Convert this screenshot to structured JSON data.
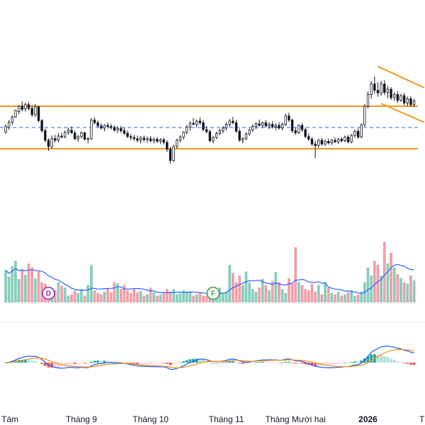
{
  "chart_data": {
    "type": "candlestick",
    "title": "",
    "xlabel": "",
    "ylabel": "",
    "x_ticks": [
      {
        "label": "Tám",
        "index": 0
      },
      {
        "label": "Tháng 9",
        "index": 23
      },
      {
        "label": "Tháng 10",
        "index": 44
      },
      {
        "label": "Tháng 11",
        "index": 67
      },
      {
        "label": "Tháng Mười hai",
        "index": 88
      },
      {
        "label": "2026",
        "index": 110
      },
      {
        "label": "T",
        "index": 126
      }
    ],
    "price_pane": {
      "ylim": [
        80,
        120
      ],
      "range_levels": {
        "upper": 104,
        "lower": 96,
        "mid": 100,
        "color": "#f7931a",
        "mid_color": "#2962ff"
      },
      "trend_channel": {
        "upper_start": [
          113,
          111.5
        ],
        "upper_end": [
          127,
          107.5
        ],
        "lower_start": [
          114,
          104.5
        ],
        "lower_end": [
          127,
          101
        ],
        "color": "#f7931a"
      },
      "candles": [
        {
          "o": 99.2,
          "h": 100.6,
          "l": 98.8,
          "c": 100.2
        },
        {
          "o": 100.0,
          "h": 101.4,
          "l": 99.6,
          "c": 101.0
        },
        {
          "o": 101.0,
          "h": 102.3,
          "l": 100.5,
          "c": 102.0
        },
        {
          "o": 102.0,
          "h": 103.4,
          "l": 101.8,
          "c": 103.2
        },
        {
          "o": 103.0,
          "h": 104.2,
          "l": 102.5,
          "c": 104.0
        },
        {
          "o": 104.0,
          "h": 104.9,
          "l": 103.0,
          "c": 103.4
        },
        {
          "o": 103.5,
          "h": 104.7,
          "l": 103.0,
          "c": 104.3
        },
        {
          "o": 104.3,
          "h": 104.8,
          "l": 103.2,
          "c": 103.6
        },
        {
          "o": 103.6,
          "h": 104.2,
          "l": 102.0,
          "c": 102.4
        },
        {
          "o": 102.4,
          "h": 104.4,
          "l": 102.0,
          "c": 103.9
        },
        {
          "o": 103.9,
          "h": 104.1,
          "l": 101.0,
          "c": 101.3
        },
        {
          "o": 101.3,
          "h": 101.6,
          "l": 99.0,
          "c": 99.4
        },
        {
          "o": 99.4,
          "h": 99.8,
          "l": 97.2,
          "c": 97.6
        },
        {
          "o": 97.6,
          "h": 98.0,
          "l": 95.6,
          "c": 96.4
        },
        {
          "o": 96.4,
          "h": 98.5,
          "l": 96.0,
          "c": 97.9
        },
        {
          "o": 97.9,
          "h": 98.6,
          "l": 97.2,
          "c": 97.6
        },
        {
          "o": 97.6,
          "h": 98.9,
          "l": 97.2,
          "c": 98.4
        },
        {
          "o": 98.4,
          "h": 99.0,
          "l": 97.9,
          "c": 98.2
        },
        {
          "o": 98.2,
          "h": 99.4,
          "l": 98.0,
          "c": 99.1
        },
        {
          "o": 99.1,
          "h": 100.0,
          "l": 98.6,
          "c": 99.5
        },
        {
          "o": 99.5,
          "h": 100.2,
          "l": 98.8,
          "c": 99.0
        },
        {
          "o": 99.0,
          "h": 99.4,
          "l": 97.6,
          "c": 97.9
        },
        {
          "o": 97.9,
          "h": 98.6,
          "l": 97.3,
          "c": 98.3
        },
        {
          "o": 98.3,
          "h": 99.3,
          "l": 97.9,
          "c": 99.0
        },
        {
          "o": 99.0,
          "h": 99.2,
          "l": 97.5,
          "c": 97.8
        },
        {
          "o": 97.8,
          "h": 98.2,
          "l": 97.0,
          "c": 97.9
        },
        {
          "o": 97.9,
          "h": 101.8,
          "l": 97.6,
          "c": 101.4
        },
        {
          "o": 101.4,
          "h": 101.9,
          "l": 100.6,
          "c": 100.9
        },
        {
          "o": 100.9,
          "h": 101.3,
          "l": 100.0,
          "c": 100.3
        },
        {
          "o": 100.3,
          "h": 100.8,
          "l": 99.6,
          "c": 99.9
        },
        {
          "o": 99.9,
          "h": 100.6,
          "l": 99.3,
          "c": 100.4
        },
        {
          "o": 100.4,
          "h": 100.9,
          "l": 99.8,
          "c": 100.2
        },
        {
          "o": 100.2,
          "h": 100.7,
          "l": 99.6,
          "c": 100.0
        },
        {
          "o": 100.0,
          "h": 100.4,
          "l": 99.2,
          "c": 99.5
        },
        {
          "o": 99.5,
          "h": 100.2,
          "l": 99.0,
          "c": 99.8
        },
        {
          "o": 99.8,
          "h": 100.3,
          "l": 99.0,
          "c": 99.4
        },
        {
          "o": 99.4,
          "h": 100.0,
          "l": 98.6,
          "c": 98.9
        },
        {
          "o": 98.9,
          "h": 99.4,
          "l": 98.0,
          "c": 98.3
        },
        {
          "o": 98.3,
          "h": 98.8,
          "l": 97.6,
          "c": 98.1
        },
        {
          "o": 98.1,
          "h": 98.6,
          "l": 97.5,
          "c": 97.9
        },
        {
          "o": 97.9,
          "h": 98.5,
          "l": 97.2,
          "c": 97.6
        },
        {
          "o": 97.6,
          "h": 98.4,
          "l": 97.0,
          "c": 98.0
        },
        {
          "o": 98.0,
          "h": 98.5,
          "l": 97.3,
          "c": 97.7
        },
        {
          "o": 97.7,
          "h": 98.3,
          "l": 97.1,
          "c": 97.9
        },
        {
          "o": 97.9,
          "h": 98.4,
          "l": 97.2,
          "c": 97.5
        },
        {
          "o": 97.5,
          "h": 98.1,
          "l": 97.0,
          "c": 97.8
        },
        {
          "o": 97.8,
          "h": 98.2,
          "l": 97.1,
          "c": 97.4
        },
        {
          "o": 97.4,
          "h": 98.0,
          "l": 96.9,
          "c": 97.7
        },
        {
          "o": 97.7,
          "h": 98.1,
          "l": 96.8,
          "c": 97.2
        },
        {
          "o": 97.2,
          "h": 97.6,
          "l": 95.4,
          "c": 95.9
        },
        {
          "o": 95.9,
          "h": 96.4,
          "l": 93.2,
          "c": 93.8
        },
        {
          "o": 93.8,
          "h": 96.8,
          "l": 93.5,
          "c": 96.4
        },
        {
          "o": 96.4,
          "h": 97.9,
          "l": 96.0,
          "c": 97.6
        },
        {
          "o": 97.6,
          "h": 98.5,
          "l": 97.2,
          "c": 98.2
        },
        {
          "o": 98.2,
          "h": 99.3,
          "l": 97.7,
          "c": 99.1
        },
        {
          "o": 99.1,
          "h": 100.5,
          "l": 98.7,
          "c": 100.1
        },
        {
          "o": 100.1,
          "h": 101.2,
          "l": 99.4,
          "c": 100.8
        },
        {
          "o": 100.8,
          "h": 101.8,
          "l": 100.4,
          "c": 100.6
        },
        {
          "o": 100.6,
          "h": 101.5,
          "l": 100.0,
          "c": 101.2
        },
        {
          "o": 101.2,
          "h": 101.9,
          "l": 100.5,
          "c": 100.9
        },
        {
          "o": 100.9,
          "h": 101.4,
          "l": 99.3,
          "c": 99.6
        },
        {
          "o": 99.6,
          "h": 100.3,
          "l": 98.9,
          "c": 99.2
        },
        {
          "o": 99.2,
          "h": 99.6,
          "l": 97.2,
          "c": 97.5
        },
        {
          "o": 97.5,
          "h": 98.4,
          "l": 97.0,
          "c": 98.1
        },
        {
          "o": 98.1,
          "h": 99.2,
          "l": 97.8,
          "c": 98.9
        },
        {
          "o": 98.9,
          "h": 99.8,
          "l": 98.5,
          "c": 99.4
        },
        {
          "o": 99.4,
          "h": 100.3,
          "l": 98.9,
          "c": 99.9
        },
        {
          "o": 99.9,
          "h": 101.0,
          "l": 99.5,
          "c": 100.6
        },
        {
          "o": 100.6,
          "h": 101.6,
          "l": 100.1,
          "c": 101.2
        },
        {
          "o": 101.2,
          "h": 102.0,
          "l": 100.6,
          "c": 100.9
        },
        {
          "o": 100.9,
          "h": 101.4,
          "l": 99.0,
          "c": 99.3
        },
        {
          "o": 99.3,
          "h": 99.8,
          "l": 97.3,
          "c": 97.6
        },
        {
          "o": 97.6,
          "h": 98.2,
          "l": 97.0,
          "c": 97.9
        },
        {
          "o": 97.9,
          "h": 99.1,
          "l": 97.6,
          "c": 98.8
        },
        {
          "o": 98.8,
          "h": 99.8,
          "l": 98.4,
          "c": 99.5
        },
        {
          "o": 99.5,
          "h": 100.6,
          "l": 99.2,
          "c": 100.2
        },
        {
          "o": 100.2,
          "h": 101.0,
          "l": 99.7,
          "c": 100.7
        },
        {
          "o": 100.7,
          "h": 101.5,
          "l": 100.2,
          "c": 100.4
        },
        {
          "o": 100.4,
          "h": 101.1,
          "l": 99.9,
          "c": 100.9
        },
        {
          "o": 100.9,
          "h": 101.4,
          "l": 100.0,
          "c": 100.3
        },
        {
          "o": 100.3,
          "h": 101.0,
          "l": 99.7,
          "c": 100.6
        },
        {
          "o": 100.6,
          "h": 101.2,
          "l": 99.8,
          "c": 100.1
        },
        {
          "o": 100.1,
          "h": 100.8,
          "l": 99.5,
          "c": 100.4
        },
        {
          "o": 100.4,
          "h": 101.0,
          "l": 99.6,
          "c": 99.9
        },
        {
          "o": 99.9,
          "h": 100.9,
          "l": 99.5,
          "c": 100.6
        },
        {
          "o": 100.6,
          "h": 102.6,
          "l": 100.3,
          "c": 102.2
        },
        {
          "o": 102.2,
          "h": 102.8,
          "l": 101.0,
          "c": 101.4
        },
        {
          "o": 101.4,
          "h": 101.7,
          "l": 99.0,
          "c": 99.4
        },
        {
          "o": 99.4,
          "h": 100.0,
          "l": 98.6,
          "c": 99.0
        },
        {
          "o": 99.0,
          "h": 100.6,
          "l": 98.8,
          "c": 100.4
        },
        {
          "o": 100.4,
          "h": 100.8,
          "l": 99.2,
          "c": 99.6
        },
        {
          "o": 99.6,
          "h": 100.0,
          "l": 98.0,
          "c": 98.3
        },
        {
          "o": 98.3,
          "h": 98.9,
          "l": 97.5,
          "c": 97.8
        },
        {
          "o": 97.8,
          "h": 98.2,
          "l": 96.5,
          "c": 96.9
        },
        {
          "o": 96.9,
          "h": 97.5,
          "l": 94.2,
          "c": 96.6
        },
        {
          "o": 96.6,
          "h": 97.9,
          "l": 96.2,
          "c": 97.6
        },
        {
          "o": 97.6,
          "h": 98.0,
          "l": 96.6,
          "c": 96.9
        },
        {
          "o": 96.9,
          "h": 97.8,
          "l": 96.5,
          "c": 97.4
        },
        {
          "o": 97.4,
          "h": 97.9,
          "l": 96.8,
          "c": 97.1
        },
        {
          "o": 97.1,
          "h": 97.8,
          "l": 96.7,
          "c": 97.6
        },
        {
          "o": 97.6,
          "h": 98.1,
          "l": 97.1,
          "c": 97.3
        },
        {
          "o": 97.3,
          "h": 98.0,
          "l": 96.9,
          "c": 97.8
        },
        {
          "o": 97.8,
          "h": 98.2,
          "l": 97.2,
          "c": 97.5
        },
        {
          "o": 97.5,
          "h": 98.5,
          "l": 97.2,
          "c": 98.2
        },
        {
          "o": 98.2,
          "h": 98.6,
          "l": 97.0,
          "c": 97.3
        },
        {
          "o": 97.3,
          "h": 98.8,
          "l": 97.0,
          "c": 98.5
        },
        {
          "o": 98.5,
          "h": 99.6,
          "l": 98.1,
          "c": 99.3
        },
        {
          "o": 99.3,
          "h": 99.8,
          "l": 97.9,
          "c": 98.2
        },
        {
          "o": 98.2,
          "h": 100.8,
          "l": 98.0,
          "c": 100.5
        },
        {
          "o": 100.5,
          "h": 104.4,
          "l": 100.2,
          "c": 104.0
        },
        {
          "o": 104.0,
          "h": 106.8,
          "l": 103.6,
          "c": 106.2
        },
        {
          "o": 106.2,
          "h": 108.8,
          "l": 105.4,
          "c": 108.2
        },
        {
          "o": 108.2,
          "h": 109.6,
          "l": 106.4,
          "c": 107.0
        },
        {
          "o": 107.0,
          "h": 108.5,
          "l": 105.8,
          "c": 106.5
        },
        {
          "o": 106.5,
          "h": 108.8,
          "l": 106.0,
          "c": 108.2
        },
        {
          "o": 108.2,
          "h": 108.9,
          "l": 106.1,
          "c": 106.6
        },
        {
          "o": 106.6,
          "h": 107.8,
          "l": 105.5,
          "c": 107.2
        },
        {
          "o": 107.2,
          "h": 107.6,
          "l": 105.2,
          "c": 105.6
        },
        {
          "o": 105.6,
          "h": 106.6,
          "l": 105.0,
          "c": 106.2
        },
        {
          "o": 106.2,
          "h": 106.8,
          "l": 104.6,
          "c": 105.1
        },
        {
          "o": 105.1,
          "h": 106.3,
          "l": 104.8,
          "c": 106.0
        },
        {
          "o": 106.0,
          "h": 106.5,
          "l": 104.2,
          "c": 104.6
        },
        {
          "o": 104.6,
          "h": 105.8,
          "l": 104.0,
          "c": 105.4
        },
        {
          "o": 105.4,
          "h": 105.9,
          "l": 103.9,
          "c": 104.3
        },
        {
          "o": 104.3,
          "h": 105.4,
          "l": 103.8,
          "c": 105.0
        }
      ]
    },
    "volume_pane": {
      "ylim": [
        0,
        100
      ],
      "up_color": "#89cdbd",
      "down_color": "#f0a0aa",
      "ma_color": "#2962ff",
      "values": [
        48,
        38,
        54,
        62,
        35,
        50,
        41,
        58,
        52,
        36,
        46,
        30,
        28,
        20,
        15,
        18,
        30,
        25,
        22,
        10,
        12,
        18,
        14,
        20,
        10,
        26,
        56,
        18,
        14,
        12,
        16,
        20,
        15,
        30,
        28,
        20,
        26,
        18,
        14,
        20,
        15,
        17,
        10,
        12,
        22,
        15,
        10,
        12,
        14,
        20,
        16,
        20,
        12,
        14,
        18,
        16,
        15,
        10,
        12,
        14,
        10,
        10,
        12,
        20,
        15,
        22,
        14,
        16,
        56,
        44,
        30,
        40,
        26,
        46,
        30,
        20,
        16,
        22,
        35,
        26,
        18,
        32,
        45,
        30,
        20,
        14,
        36,
        28,
        82,
        30,
        26,
        20,
        18,
        28,
        16,
        26,
        12,
        30,
        22,
        14,
        12,
        16,
        10,
        12,
        15,
        18,
        10,
        12,
        16,
        30,
        52,
        40,
        62,
        56,
        40,
        90,
        58,
        74,
        52,
        42,
        36,
        30,
        28,
        40,
        33
      ]
    },
    "macd_pane": {
      "ylim": [
        -3,
        3
      ],
      "macd_color": "#2962ff",
      "signal_color": "#f7931a",
      "hist_up_strong": "#26a69a",
      "hist_up_weak": "#b2dfdb",
      "hist_down_strong": "#ef5350",
      "hist_down_weak": "#ffcdd2"
    },
    "markers": [
      {
        "label": "D",
        "bar_index": 13,
        "pane": "volume",
        "color": "#9c27b0"
      },
      {
        "label": "F",
        "bar_index": 63,
        "pane": "volume",
        "color": "#43a047"
      }
    ]
  }
}
